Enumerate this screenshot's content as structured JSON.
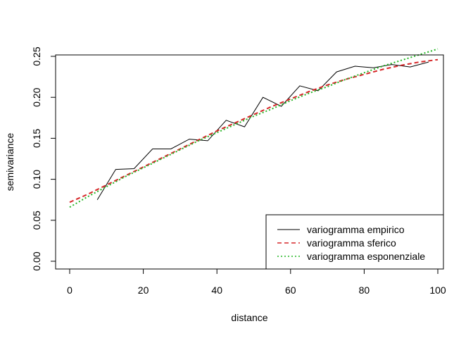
{
  "chart_data": {
    "type": "line",
    "title": "",
    "xlabel": "distance",
    "ylabel": "semivariance",
    "xlim": [
      0,
      100
    ],
    "ylim": [
      0,
      0.25
    ],
    "xticks": [
      "0",
      "20",
      "40",
      "60",
      "80",
      "100"
    ],
    "yticks": [
      "0.00",
      "0.05",
      "0.10",
      "0.15",
      "0.20",
      "0.25"
    ],
    "legend_position": "bottom-right",
    "series": [
      {
        "name": "variogramma empirico",
        "color": "#000000",
        "style": "solid",
        "x": [
          7.5,
          12.5,
          17.5,
          22.5,
          27.5,
          32.5,
          37.5,
          42.5,
          47.5,
          52.5,
          57.5,
          62.5,
          67.5,
          72.5,
          77.5,
          82.5,
          87.5,
          92.5,
          97.5
        ],
        "y": [
          0.075,
          0.112,
          0.113,
          0.137,
          0.137,
          0.149,
          0.147,
          0.172,
          0.164,
          0.2,
          0.189,
          0.214,
          0.208,
          0.231,
          0.238,
          0.236,
          0.24,
          0.237,
          0.243
        ]
      },
      {
        "name": "variogramma sferico",
        "color": "#d62728",
        "style": "dashed",
        "x": [
          0,
          5,
          10,
          15,
          20,
          25,
          30,
          35,
          40,
          45,
          50,
          55,
          60,
          65,
          70,
          75,
          80,
          85,
          90,
          95,
          100
        ],
        "y": [
          0.072,
          0.082,
          0.093,
          0.104,
          0.115,
          0.126,
          0.137,
          0.148,
          0.159,
          0.169,
          0.179,
          0.189,
          0.198,
          0.207,
          0.215,
          0.222,
          0.228,
          0.234,
          0.239,
          0.243,
          0.246
        ]
      },
      {
        "name": "variogramma esponenziale",
        "color": "#22b522",
        "style": "dotted",
        "x": [
          0,
          5,
          10,
          15,
          20,
          25,
          30,
          35,
          40,
          45,
          50,
          55,
          60,
          65,
          70,
          75,
          80,
          85,
          90,
          95,
          100
        ],
        "y": [
          0.066,
          0.079,
          0.091,
          0.103,
          0.114,
          0.125,
          0.136,
          0.147,
          0.157,
          0.167,
          0.177,
          0.186,
          0.196,
          0.205,
          0.213,
          0.222,
          0.23,
          0.238,
          0.245,
          0.252,
          0.259
        ]
      }
    ]
  }
}
